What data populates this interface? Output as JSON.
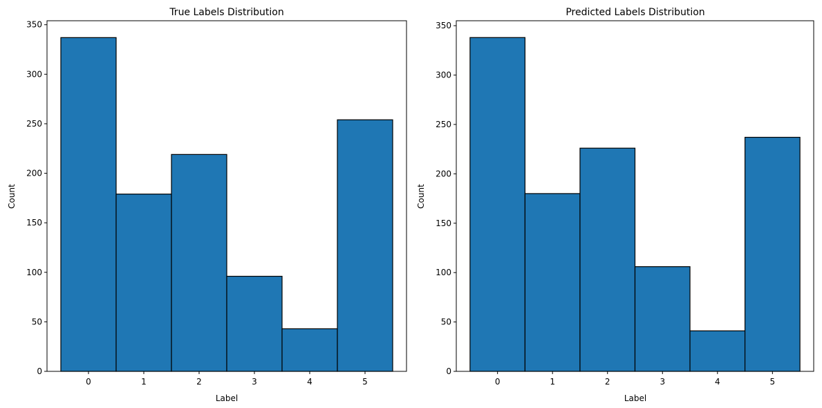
{
  "colors": {
    "bar_fill": "#1f77b4",
    "bar_edge": "#000000",
    "axis": "#000000"
  },
  "chart_data": [
    {
      "type": "bar",
      "title": "True Labels Distribution",
      "xlabel": "Label",
      "ylabel": "Count",
      "categories": [
        "0",
        "1",
        "2",
        "3",
        "4",
        "5"
      ],
      "values": [
        337,
        179,
        219,
        96,
        43,
        254
      ],
      "xlim": [
        -0.75,
        5.75
      ],
      "ylim": [
        0,
        354
      ],
      "yticks": [
        0,
        50,
        100,
        150,
        200,
        250,
        300,
        350
      ],
      "grid": false,
      "legend": "none"
    },
    {
      "type": "bar",
      "title": "Predicted Labels Distribution",
      "xlabel": "Label",
      "ylabel": "Count",
      "categories": [
        "0",
        "1",
        "2",
        "3",
        "4",
        "5"
      ],
      "values": [
        338,
        180,
        226,
        106,
        41,
        237
      ],
      "xlim": [
        -0.75,
        5.75
      ],
      "ylim": [
        0,
        355
      ],
      "yticks": [
        0,
        50,
        100,
        150,
        200,
        250,
        300,
        350
      ],
      "grid": false,
      "legend": "none"
    }
  ]
}
